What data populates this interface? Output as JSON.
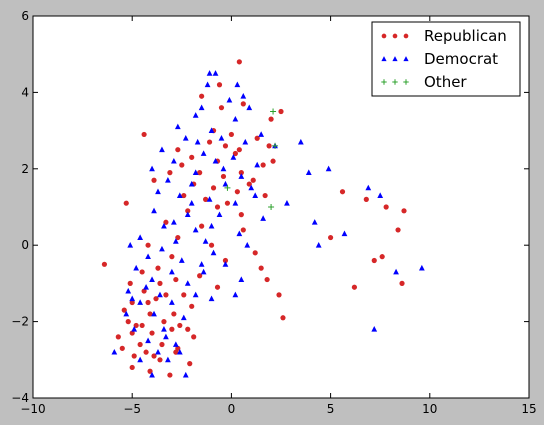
{
  "chart_data": {
    "type": "scatter",
    "title": "",
    "xlabel": "",
    "ylabel": "",
    "xlim": [
      -10,
      15
    ],
    "ylim": [
      -4,
      6
    ],
    "xticks": [
      "−10",
      "−5",
      "0",
      "5",
      "10",
      "15"
    ],
    "yticks": [
      "−4",
      "−2",
      "0",
      "2",
      "4",
      "6"
    ],
    "grid": false,
    "legend_position": "top-right",
    "series": [
      {
        "name": "Republican",
        "marker": "circle",
        "color": "#d62728",
        "points": [
          [
            0.4,
            4.8
          ],
          [
            -0.6,
            4.2
          ],
          [
            -1.5,
            3.9
          ],
          [
            0.6,
            3.7
          ],
          [
            -0.5,
            3.6
          ],
          [
            2.5,
            3.5
          ],
          [
            -4.4,
            2.9
          ],
          [
            0.0,
            2.9
          ],
          [
            2.0,
            3.3
          ],
          [
            -0.9,
            3.0
          ],
          [
            1.3,
            2.8
          ],
          [
            -1.1,
            2.7
          ],
          [
            -0.3,
            2.6
          ],
          [
            -2.7,
            2.5
          ],
          [
            0.2,
            2.4
          ],
          [
            -2.0,
            2.3
          ],
          [
            0.4,
            2.5
          ],
          [
            2.1,
            2.2
          ],
          [
            -0.7,
            2.2
          ],
          [
            -2.5,
            2.1
          ],
          [
            1.6,
            2.1
          ],
          [
            -1.6,
            1.9
          ],
          [
            0.5,
            1.9
          ],
          [
            -0.4,
            1.8
          ],
          [
            -3.9,
            1.7
          ],
          [
            -1.9,
            1.6
          ],
          [
            1.1,
            1.7
          ],
          [
            -0.9,
            1.5
          ],
          [
            0.3,
            1.4
          ],
          [
            -2.4,
            1.3
          ],
          [
            1.7,
            1.3
          ],
          [
            -5.3,
            1.1
          ],
          [
            -0.7,
            1.0
          ],
          [
            -2.2,
            0.9
          ],
          [
            0.5,
            0.8
          ],
          [
            -3.3,
            0.6
          ],
          [
            -1.5,
            0.5
          ],
          [
            0.6,
            0.4
          ],
          [
            -2.7,
            0.2
          ],
          [
            -4.2,
            0.0
          ],
          [
            -1.0,
            0.0
          ],
          [
            5.0,
            0.2
          ],
          [
            1.2,
            -0.2
          ],
          [
            -3.0,
            -0.3
          ],
          [
            -0.3,
            -0.4
          ],
          [
            7.2,
            -0.4
          ],
          [
            -6.4,
            -0.5
          ],
          [
            -3.7,
            -0.6
          ],
          [
            1.5,
            -0.6
          ],
          [
            -4.5,
            -0.7
          ],
          [
            -2.8,
            -0.9
          ],
          [
            -1.6,
            -0.8
          ],
          [
            1.8,
            -0.9
          ],
          [
            -5.1,
            -1.0
          ],
          [
            -3.6,
            -1.0
          ],
          [
            -0.7,
            -1.1
          ],
          [
            6.2,
            -1.1
          ],
          [
            -4.4,
            -1.2
          ],
          [
            -2.4,
            -1.3
          ],
          [
            2.4,
            -1.3
          ],
          [
            -5.0,
            -1.5
          ],
          [
            -3.8,
            -1.4
          ],
          [
            -2.0,
            -1.6
          ],
          [
            -5.4,
            -1.7
          ],
          [
            -4.1,
            -1.8
          ],
          [
            -2.9,
            -1.8
          ],
          [
            -5.2,
            -2.0
          ],
          [
            -4.5,
            -2.1
          ],
          [
            -3.4,
            -2.0
          ],
          [
            -2.6,
            -2.1
          ],
          [
            -5.0,
            -2.3
          ],
          [
            -4.0,
            -2.3
          ],
          [
            -1.9,
            -2.4
          ],
          [
            -5.7,
            -2.4
          ],
          [
            -4.6,
            -2.6
          ],
          [
            -3.5,
            -2.6
          ],
          [
            -2.7,
            -2.7
          ],
          [
            -4.9,
            -2.9
          ],
          [
            -3.9,
            -2.9
          ],
          [
            -2.1,
            -3.1
          ],
          [
            -5.0,
            -3.2
          ],
          [
            -3.1,
            -3.4
          ],
          [
            -4.1,
            -3.3
          ],
          [
            -2.8,
            -2.8
          ],
          [
            2.6,
            -1.9
          ],
          [
            5.6,
            1.4
          ],
          [
            6.8,
            1.2
          ],
          [
            7.8,
            1.0
          ],
          [
            8.7,
            0.9
          ],
          [
            8.4,
            0.4
          ],
          [
            7.6,
            -0.3
          ],
          [
            8.6,
            -1.0
          ],
          [
            -3.3,
            -1.3
          ],
          [
            -4.8,
            -2.1
          ],
          [
            -4.2,
            -1.5
          ],
          [
            -3.0,
            -2.2
          ],
          [
            -5.5,
            -2.7
          ],
          [
            -4.3,
            -2.8
          ],
          [
            -3.6,
            -3.0
          ],
          [
            -2.2,
            -2.2
          ],
          [
            -1.3,
            1.2
          ],
          [
            0.9,
            1.6
          ],
          [
            -0.2,
            1.1
          ],
          [
            1.9,
            2.6
          ],
          [
            -3.1,
            1.9
          ]
        ]
      },
      {
        "name": "Democrat",
        "marker": "triangle",
        "color": "#0000ff",
        "points": [
          [
            -1.1,
            4.5
          ],
          [
            -0.8,
            4.5
          ],
          [
            -1.2,
            4.2
          ],
          [
            0.3,
            4.2
          ],
          [
            0.6,
            3.9
          ],
          [
            -0.1,
            3.8
          ],
          [
            -1.5,
            3.6
          ],
          [
            0.9,
            3.6
          ],
          [
            -1.8,
            3.4
          ],
          [
            0.2,
            3.3
          ],
          [
            -2.7,
            3.1
          ],
          [
            -1.0,
            3.0
          ],
          [
            1.5,
            2.9
          ],
          [
            -2.3,
            2.8
          ],
          [
            -0.5,
            2.8
          ],
          [
            0.7,
            2.7
          ],
          [
            2.2,
            2.6
          ],
          [
            3.5,
            2.7
          ],
          [
            -3.5,
            2.5
          ],
          [
            -1.4,
            2.4
          ],
          [
            0.1,
            2.3
          ],
          [
            -2.9,
            2.2
          ],
          [
            -0.8,
            2.2
          ],
          [
            1.3,
            2.1
          ],
          [
            -4.0,
            2.0
          ],
          [
            -1.8,
            1.9
          ],
          [
            0.5,
            1.8
          ],
          [
            3.9,
            1.9
          ],
          [
            4.9,
            2.0
          ],
          [
            -3.2,
            1.7
          ],
          [
            -2.0,
            1.6
          ],
          [
            -0.3,
            1.6
          ],
          [
            1.0,
            1.5
          ],
          [
            -3.7,
            1.4
          ],
          [
            -2.6,
            1.3
          ],
          [
            -1.1,
            1.2
          ],
          [
            0.2,
            1.1
          ],
          [
            -3.9,
            0.9
          ],
          [
            -2.2,
            0.8
          ],
          [
            -0.6,
            0.8
          ],
          [
            1.6,
            0.7
          ],
          [
            -3.4,
            0.5
          ],
          [
            -1.8,
            0.4
          ],
          [
            0.4,
            0.3
          ],
          [
            -4.6,
            0.2
          ],
          [
            -2.8,
            0.1
          ],
          [
            -1.3,
            0.1
          ],
          [
            5.7,
            0.3
          ],
          [
            -5.1,
            0.0
          ],
          [
            -3.5,
            -0.1
          ],
          [
            -0.9,
            -0.2
          ],
          [
            4.4,
            0.0
          ],
          [
            -4.2,
            -0.3
          ],
          [
            -2.5,
            -0.4
          ],
          [
            -0.3,
            -0.5
          ],
          [
            -4.8,
            -0.6
          ],
          [
            -3.0,
            -0.7
          ],
          [
            -1.4,
            -0.7
          ],
          [
            8.3,
            -0.7
          ],
          [
            9.6,
            -0.6
          ],
          [
            -4.0,
            -0.9
          ],
          [
            -2.2,
            -1.0
          ],
          [
            0.5,
            -0.9
          ],
          [
            -5.2,
            -1.2
          ],
          [
            -3.6,
            -1.3
          ],
          [
            -1.8,
            -1.3
          ],
          [
            0.2,
            -1.3
          ],
          [
            -4.6,
            -1.5
          ],
          [
            -3.0,
            -1.5
          ],
          [
            -1.0,
            -1.4
          ],
          [
            -5.3,
            -1.8
          ],
          [
            -3.9,
            -1.8
          ],
          [
            -2.4,
            -1.9
          ],
          [
            -4.9,
            -2.2
          ],
          [
            -3.4,
            -2.2
          ],
          [
            7.2,
            -2.2
          ],
          [
            -5.9,
            -2.8
          ],
          [
            -4.2,
            -2.5
          ],
          [
            -2.8,
            -2.6
          ],
          [
            -4.6,
            -3.0
          ],
          [
            -3.2,
            -3.0
          ],
          [
            -4.0,
            -3.4
          ],
          [
            -2.3,
            -3.4
          ],
          [
            -3.7,
            -2.8
          ],
          [
            4.2,
            0.6
          ],
          [
            6.9,
            1.5
          ],
          [
            7.5,
            1.3
          ],
          [
            -2.6,
            -2.8
          ],
          [
            -5.0,
            -1.4
          ],
          [
            -1.7,
            2.7
          ],
          [
            -0.4,
            2.0
          ],
          [
            1.2,
            1.3
          ],
          [
            -2.9,
            0.6
          ],
          [
            -4.3,
            -1.1
          ],
          [
            -3.3,
            -2.4
          ],
          [
            -1.5,
            -0.5
          ],
          [
            0.8,
            0.0
          ],
          [
            -2.0,
            1.1
          ],
          [
            2.8,
            1.1
          ],
          [
            -1.0,
            0.5
          ]
        ]
      },
      {
        "name": "Other",
        "marker": "plus",
        "color": "#2ca02c",
        "points": [
          [
            2.1,
            3.5
          ],
          [
            2.2,
            2.6
          ],
          [
            -0.2,
            1.5
          ],
          [
            2.0,
            1.0
          ]
        ]
      }
    ]
  }
}
